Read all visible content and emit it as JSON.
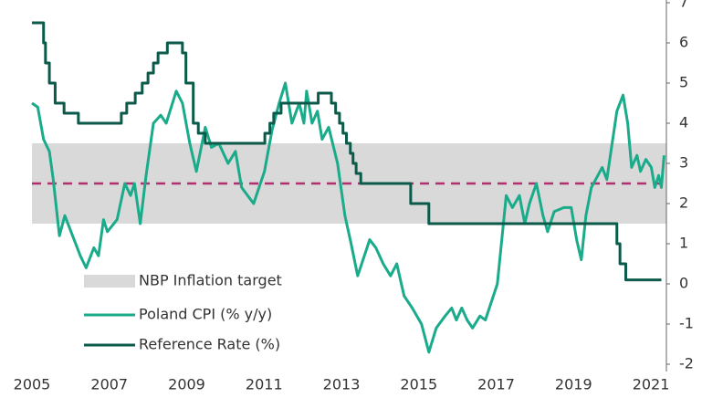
{
  "chart_data": {
    "type": "line",
    "xlim": [
      2005,
      2021.4
    ],
    "xticks": [
      2005,
      2007,
      2009,
      2011,
      2013,
      2015,
      2017,
      2019,
      2021
    ],
    "ylim": [
      -2,
      7
    ],
    "yticks": [
      -2,
      -1,
      0,
      1,
      2,
      3,
      4,
      5,
      6,
      7
    ],
    "y_axis_side": "right",
    "band": {
      "name": "NBP Inflation target",
      "range": [
        1.5,
        3.5
      ],
      "color": "#d9d9d9"
    },
    "reference_line": {
      "value": 2.5,
      "color": "#b0306f",
      "dashed": true
    },
    "series": [
      {
        "name": "Poland CPI (% y/y)",
        "color": "#1aab8a",
        "x": [
          2005.0,
          2005.15,
          2005.3,
          2005.45,
          2005.55,
          2005.71,
          2005.85,
          2006.05,
          2006.25,
          2006.4,
          2006.6,
          2006.72,
          2006.85,
          2006.95,
          2007.2,
          2007.4,
          2007.55,
          2007.65,
          2007.8,
          2007.95,
          2008.14,
          2008.33,
          2008.47,
          2008.73,
          2008.89,
          2009.08,
          2009.25,
          2009.48,
          2009.64,
          2009.83,
          2010.07,
          2010.26,
          2010.42,
          2010.73,
          2011.01,
          2011.2,
          2011.39,
          2011.55,
          2011.72,
          2011.91,
          2012.03,
          2012.1,
          2012.24,
          2012.38,
          2012.5,
          2012.67,
          2012.9,
          2013.09,
          2013.25,
          2013.42,
          2013.73,
          2013.89,
          2014.08,
          2014.27,
          2014.43,
          2014.62,
          2014.83,
          2015.07,
          2015.26,
          2015.45,
          2015.68,
          2015.85,
          2015.97,
          2016.11,
          2016.25,
          2016.39,
          2016.58,
          2016.72,
          2017.03,
          2017.26,
          2017.42,
          2017.6,
          2017.74,
          2017.86,
          2018.04,
          2018.21,
          2018.33,
          2018.5,
          2018.75,
          2018.94,
          2019.08,
          2019.2,
          2019.32,
          2019.46,
          2019.74,
          2019.86,
          2020.12,
          2020.28,
          2020.4,
          2020.5,
          2020.64,
          2020.73,
          2020.87,
          2021.01,
          2021.1,
          2021.2,
          2021.27,
          2021.34
        ],
        "values": [
          4.5,
          4.4,
          3.6,
          3.3,
          2.6,
          1.2,
          1.7,
          1.2,
          0.7,
          0.4,
          0.9,
          0.7,
          1.6,
          1.3,
          1.6,
          2.5,
          2.2,
          2.5,
          1.5,
          2.7,
          4.0,
          4.2,
          4.0,
          4.8,
          4.5,
          3.5,
          2.8,
          3.9,
          3.4,
          3.5,
          3.0,
          3.3,
          2.4,
          2.0,
          2.8,
          3.8,
          4.5,
          5.0,
          4.0,
          4.5,
          4.0,
          4.8,
          4.0,
          4.3,
          3.6,
          3.9,
          3.0,
          1.7,
          1.0,
          0.2,
          1.1,
          0.9,
          0.5,
          0.2,
          0.5,
          -0.3,
          -0.6,
          -1.0,
          -1.7,
          -1.1,
          -0.8,
          -0.6,
          -0.9,
          -0.6,
          -0.9,
          -1.1,
          -0.8,
          -0.9,
          0.0,
          2.2,
          1.9,
          2.2,
          1.5,
          2.0,
          2.5,
          1.7,
          1.3,
          1.8,
          1.9,
          1.9,
          1.1,
          0.6,
          1.7,
          2.4,
          2.9,
          2.6,
          4.3,
          4.7,
          4.0,
          2.9,
          3.2,
          2.8,
          3.1,
          2.9,
          2.4,
          2.7,
          2.4,
          3.2
        ]
      },
      {
        "name": "Reference Rate (%)",
        "color": "#0b5a4a",
        "step": "post",
        "x": [
          2005.0,
          2005.3,
          2005.35,
          2005.45,
          2005.6,
          2005.83,
          2006.2,
          2007.31,
          2007.45,
          2007.67,
          2007.85,
          2008.0,
          2008.14,
          2008.26,
          2008.5,
          2008.89,
          2008.98,
          2009.17,
          2009.3,
          2009.48,
          2011.02,
          2011.15,
          2011.25,
          2011.44,
          2012.4,
          2012.74,
          2012.85,
          2012.95,
          2013.04,
          2013.13,
          2013.23,
          2013.3,
          2013.38,
          2013.5,
          2014.79,
          2015.26,
          2020.12,
          2020.2,
          2020.35,
          2021.27
        ],
        "values": [
          6.5,
          6.0,
          5.5,
          5.0,
          4.5,
          4.25,
          4.0,
          4.25,
          4.5,
          4.75,
          5.0,
          5.25,
          5.5,
          5.75,
          6.0,
          5.75,
          5.0,
          4.0,
          3.75,
          3.5,
          3.75,
          4.0,
          4.25,
          4.5,
          4.75,
          4.5,
          4.25,
          4.0,
          3.75,
          3.5,
          3.25,
          3.0,
          2.75,
          2.5,
          2.0,
          1.5,
          1.0,
          0.5,
          0.1,
          0.1
        ]
      }
    ]
  }
}
